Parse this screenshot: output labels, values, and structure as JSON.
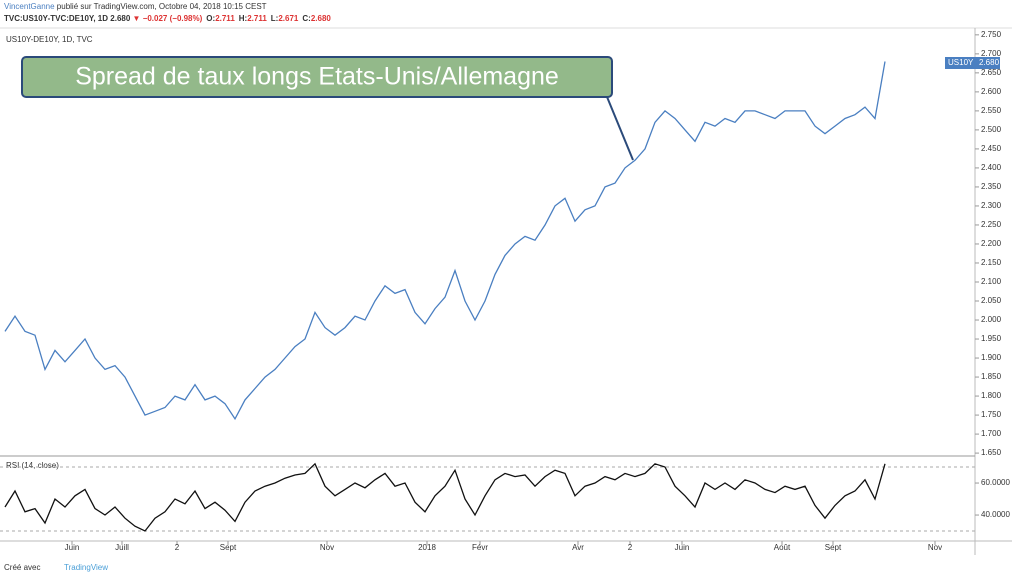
{
  "header": {
    "author": "VincentGanne",
    "published": "publié sur TradingView.com, Octobre 04, 2018 10:15 CEST",
    "symbol": "TVC:US10Y-TVC:DE10Y, 1D",
    "last": "2.680",
    "arrow": "▼",
    "change": "−0.027 (−0.98%)",
    "ohlc": [
      {
        "key": "O:",
        "val": "2.711"
      },
      {
        "key": "H:",
        "val": "2.711"
      },
      {
        "key": "L:",
        "val": "2.671"
      },
      {
        "key": "C:",
        "val": "2.680"
      }
    ]
  },
  "footer": {
    "made_with": "Créé avec",
    "brand": "TradingView"
  },
  "chart_data": [
    {
      "type": "line",
      "legend_text": "US10Y-DE10Y, 1D, TVC",
      "annotation": "Spread de taux longs Etats-Unis/Allemagne",
      "last_tag": {
        "name": "US10Y",
        "value": {
          "value": 2.68,
          "label": "2.680"
        }
      },
      "x": [
        0,
        1,
        2,
        3,
        4,
        5,
        6,
        7,
        8,
        9,
        10,
        11,
        12,
        13,
        14,
        15,
        16,
        17,
        18,
        19,
        20,
        21,
        22,
        23,
        24,
        25,
        26,
        27,
        28,
        29,
        30,
        31,
        32,
        33,
        34,
        35,
        36,
        37,
        38,
        39,
        40,
        41,
        42,
        43,
        44,
        45,
        46,
        47,
        48,
        49,
        50,
        51,
        52,
        53,
        54,
        55,
        56,
        57,
        58,
        59,
        60,
        61,
        62,
        63,
        64,
        65,
        66,
        67,
        68,
        69,
        70,
        71,
        72,
        73,
        74,
        75,
        76,
        77,
        78,
        79,
        80,
        81,
        82,
        83,
        84,
        85,
        86,
        87,
        88
      ],
      "series": [
        {
          "name": "US10Y-DE10Y",
          "color": "#4a7fc1",
          "values": [
            1.97,
            2.01,
            1.97,
            1.96,
            1.87,
            1.92,
            1.89,
            1.92,
            1.95,
            1.9,
            1.87,
            1.88,
            1.85,
            1.8,
            1.75,
            1.76,
            1.77,
            1.8,
            1.79,
            1.83,
            1.79,
            1.8,
            1.78,
            1.74,
            1.79,
            1.82,
            1.85,
            1.87,
            1.9,
            1.93,
            1.95,
            2.02,
            1.98,
            1.96,
            1.98,
            2.01,
            2.0,
            2.05,
            2.09,
            2.07,
            2.08,
            2.02,
            1.99,
            2.03,
            2.06,
            2.13,
            2.05,
            2.0,
            2.05,
            2.12,
            2.17,
            2.2,
            2.22,
            2.21,
            2.25,
            2.3,
            2.32,
            2.26,
            2.29,
            2.3,
            2.35,
            2.36,
            2.4,
            2.42,
            2.45,
            2.52,
            2.55,
            2.53,
            2.5,
            2.47,
            2.52,
            2.51,
            2.53,
            2.52,
            2.55,
            2.55,
            2.54,
            2.53,
            2.55,
            2.55,
            2.55,
            2.51,
            2.49,
            2.51,
            2.53,
            2.54,
            2.56,
            2.53,
            2.68
          ]
        }
      ],
      "xlim": [
        -0.5,
        97
      ],
      "xticks": [
        {
          "value": 6.7,
          "label": "Juin"
        },
        {
          "value": 11.7,
          "label": "Juill"
        },
        {
          "value": 17.2,
          "label": "2"
        },
        {
          "value": 22.3,
          "label": "Sept"
        },
        {
          "value": 32.2,
          "label": "Nov"
        },
        {
          "value": 42.2,
          "label": "2018"
        },
        {
          "value": 47.5,
          "label": "Févr"
        },
        {
          "value": 57.3,
          "label": "Avr"
        },
        {
          "value": 62.5,
          "label": "2"
        },
        {
          "value": 67.7,
          "label": "Juin"
        },
        {
          "value": 77.7,
          "label": "Août"
        },
        {
          "value": 82.8,
          "label": "Sept"
        },
        {
          "value": 93,
          "label": "Nov"
        }
      ],
      "ylim": [
        1.645,
        2.768
      ],
      "yticks": [
        {
          "value": 2.75,
          "label": "2.750"
        },
        {
          "value": 2.7,
          "label": "2.700"
        },
        {
          "value": 2.65,
          "label": "2.650"
        },
        {
          "value": 2.6,
          "label": "2.600"
        },
        {
          "value": 2.55,
          "label": "2.550"
        },
        {
          "value": 2.5,
          "label": "2.500"
        },
        {
          "value": 2.45,
          "label": "2.450"
        },
        {
          "value": 2.4,
          "label": "2.400"
        },
        {
          "value": 2.35,
          "label": "2.350"
        },
        {
          "value": 2.3,
          "label": "2.300"
        },
        {
          "value": 2.25,
          "label": "2.250"
        },
        {
          "value": 2.2,
          "label": "2.200"
        },
        {
          "value": 2.15,
          "label": "2.150"
        },
        {
          "value": 2.1,
          "label": "2.100"
        },
        {
          "value": 2.05,
          "label": "2.050"
        },
        {
          "value": 2.0,
          "label": "2.000"
        },
        {
          "value": 1.95,
          "label": "1.950"
        },
        {
          "value": 1.9,
          "label": "1.900"
        },
        {
          "value": 1.85,
          "label": "1.850"
        },
        {
          "value": 1.8,
          "label": "1.800"
        },
        {
          "value": 1.75,
          "label": "1.750"
        },
        {
          "value": 1.7,
          "label": "1.700"
        },
        {
          "value": 1.65,
          "label": "1.650"
        }
      ]
    },
    {
      "type": "line",
      "legend_text": "RSI (14, close)",
      "series": [
        {
          "name": "RSI",
          "color": "#111111",
          "values": [
            45,
            55,
            42,
            44,
            35,
            50,
            45,
            52,
            56,
            44,
            40,
            45,
            38,
            33,
            30,
            38,
            42,
            50,
            47,
            55,
            44,
            48,
            43,
            36,
            48,
            55,
            58,
            60,
            63,
            65,
            66,
            72,
            58,
            52,
            56,
            60,
            57,
            62,
            66,
            58,
            60,
            48,
            42,
            52,
            58,
            68,
            50,
            40,
            52,
            62,
            66,
            64,
            65,
            58,
            64,
            68,
            66,
            52,
            58,
            60,
            64,
            62,
            66,
            64,
            66,
            72,
            70,
            58,
            52,
            45,
            60,
            56,
            60,
            56,
            62,
            60,
            56,
            54,
            58,
            56,
            58,
            46,
            38,
            46,
            52,
            55,
            62,
            50,
            72
          ]
        }
      ],
      "ylim": [
        24.4,
        76.9
      ],
      "yticks": [
        {
          "value": 60,
          "label": "60.0000"
        },
        {
          "value": 40,
          "label": "40.0000"
        }
      ],
      "levels": [
        70,
        30
      ]
    }
  ]
}
